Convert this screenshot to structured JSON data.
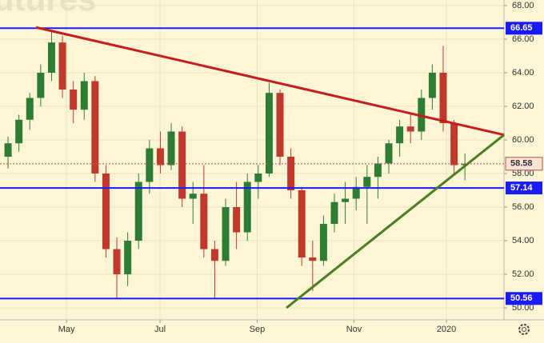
{
  "chart_data": {
    "type": "candlestick",
    "watermark": "utures",
    "categories": [
      null,
      null,
      null,
      null,
      null,
      null,
      null,
      null,
      null,
      null,
      null,
      null,
      null,
      null,
      null,
      null,
      null,
      null,
      null,
      null,
      null,
      null,
      null,
      null,
      null,
      null,
      null,
      null,
      null,
      null,
      null,
      null,
      null,
      null,
      null,
      null,
      null,
      null,
      null,
      null,
      null,
      null,
      null
    ],
    "open": [
      59.0,
      59.8,
      61.2,
      62.5,
      64.0,
      65.8,
      63.0,
      61.8,
      63.5,
      58.0,
      53.5,
      52.0,
      54.0,
      57.5,
      59.5,
      58.5,
      60.5,
      56.5,
      56.8,
      53.5,
      52.8,
      56.0,
      54.5,
      57.5,
      58.0,
      62.8,
      59.0,
      57.0,
      53.0,
      52.8,
      55.0,
      56.3,
      56.5,
      57.2,
      57.8,
      58.6,
      59.8,
      60.8,
      60.5,
      62.5,
      64.0,
      61.0,
      58.5
    ],
    "high": [
      60.2,
      61.5,
      62.8,
      64.5,
      66.5,
      66.2,
      63.5,
      64.0,
      63.8,
      58.5,
      54.2,
      54.5,
      58.0,
      60.0,
      60.5,
      61.0,
      60.8,
      57.5,
      58.5,
      54.0,
      56.5,
      57.5,
      58.0,
      58.5,
      63.4,
      63.0,
      59.5,
      57.2,
      54.0,
      55.5,
      56.8,
      57.5,
      57.8,
      58.5,
      59.0,
      60.0,
      61.2,
      61.5,
      63.0,
      64.5,
      65.6,
      61.2,
      59.2
    ],
    "low": [
      58.3,
      59.3,
      60.6,
      62.0,
      63.5,
      62.5,
      61.0,
      61.2,
      57.5,
      53.0,
      50.6,
      51.3,
      53.5,
      56.8,
      58.0,
      58.2,
      56.0,
      55.0,
      53.0,
      50.6,
      52.5,
      53.5,
      54.0,
      56.5,
      57.8,
      58.5,
      56.5,
      52.5,
      51.0,
      52.5,
      54.5,
      55.0,
      55.8,
      55.0,
      56.5,
      58.0,
      59.0,
      59.8,
      60.0,
      61.8,
      60.5,
      58.0,
      57.6
    ],
    "close": [
      59.8,
      61.2,
      62.5,
      64.0,
      65.8,
      63.0,
      61.8,
      63.5,
      58.0,
      53.5,
      52.0,
      54.0,
      57.5,
      59.5,
      58.5,
      60.5,
      56.5,
      56.8,
      53.5,
      52.8,
      56.0,
      54.5,
      57.5,
      58.0,
      62.8,
      59.0,
      57.0,
      53.0,
      52.8,
      55.0,
      56.3,
      56.5,
      57.2,
      57.8,
      58.6,
      59.8,
      60.8,
      60.5,
      62.5,
      64.0,
      61.0,
      58.5,
      58.58
    ],
    "up_color": "#2e7d32",
    "down_color": "#c0392b",
    "xlim": [
      -0.74,
      45.59
    ],
    "xticks": [
      {
        "value": 5.37,
        "label": "May"
      },
      {
        "value": 13.97,
        "label": "Jul"
      },
      {
        "value": 22.9,
        "label": "Sep"
      },
      {
        "value": 31.8,
        "label": "Nov"
      },
      {
        "value": 40.3,
        "label": "2020"
      }
    ],
    "ylim": [
      49.29,
      68.33
    ],
    "yticks": [
      {
        "value": 50,
        "label": "50.00"
      },
      {
        "value": 52,
        "label": "52.00"
      },
      {
        "value": 54,
        "label": "54.00"
      },
      {
        "value": 56,
        "label": "56.00"
      },
      {
        "value": 58,
        "label": "58.00"
      },
      {
        "value": 60,
        "label": "60.00"
      },
      {
        "value": 62,
        "label": "62.00"
      },
      {
        "value": 64,
        "label": "64.00"
      },
      {
        "value": 66,
        "label": "66.00"
      },
      {
        "value": 68,
        "label": "68.00"
      }
    ],
    "grid": true,
    "hlines": [
      66.65,
      57.14,
      50.56
    ],
    "hline_color": "#1a1aff",
    "trendlines": [
      {
        "color": "#c41e1e",
        "x": [
          2.57,
          45.59
        ],
        "values": [
          66.7,
          60.3
        ]
      },
      {
        "color": "#4a7f1e",
        "x": [
          25.59,
          45.59
        ],
        "values": [
          50.0,
          60.3
        ]
      }
    ]
  }
}
